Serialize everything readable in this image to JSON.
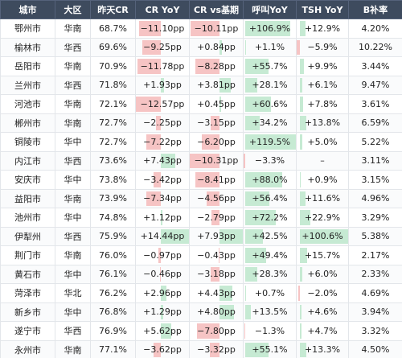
{
  "table": {
    "header": [
      "城市",
      "大区",
      "昨天CR",
      "CR YoY",
      "CR vs基期",
      "呼叫YoY",
      "TSH YoY",
      "B补率"
    ],
    "rows": [
      [
        "鄂州市",
        "华南",
        "68.7%",
        "−11.10pp",
        "−10.11pp",
        "+106.9%",
        "+12.9%",
        "4.20%"
      ],
      [
        "榆林市",
        "华西",
        "69.6%",
        "−9.25pp",
        "+0.84pp",
        "+1.1%",
        "−5.9%",
        "10.22%"
      ],
      [
        "岳阳市",
        "华南",
        "70.9%",
        "−11.78pp",
        "−8.28pp",
        "+55.7%",
        "+9.9%",
        "3.44%"
      ],
      [
        "兰州市",
        "华西",
        "71.8%",
        "+1.93pp",
        "+3.81pp",
        "+28.1%",
        "+6.1%",
        "9.47%"
      ],
      [
        "河池市",
        "华南",
        "72.1%",
        "−12.57pp",
        "+0.45pp",
        "+60.6%",
        "+7.8%",
        "3.61%"
      ],
      [
        "郴州市",
        "华南",
        "72.7%",
        "−2.25pp",
        "−3.15pp",
        "+34.2%",
        "+13.8%",
        "6.59%"
      ],
      [
        "铜陵市",
        "华中",
        "72.7%",
        "−7.22pp",
        "−6.20pp",
        "+119.5%",
        "+5.0%",
        "5.22%"
      ],
      [
        "内江市",
        "华西",
        "73.6%",
        "+7.43pp",
        "−10.31pp",
        "−3.3%",
        "–",
        "3.11%"
      ],
      [
        "安庆市",
        "华中",
        "73.8%",
        "−3.42pp",
        "−8.41pp",
        "+88.0%",
        "+0.9%",
        "3.15%"
      ],
      [
        "益阳市",
        "华南",
        "73.9%",
        "−7.34pp",
        "−4.56pp",
        "+56.4%",
        "+11.6%",
        "4.96%"
      ],
      [
        "池州市",
        "华中",
        "74.8%",
        "+1.12pp",
        "−2.79pp",
        "+72.2%",
        "+22.9%",
        "3.29%"
      ],
      [
        "伊犁州",
        "华西",
        "75.9%",
        "+14.44pp",
        "+7.93pp",
        "+42.5%",
        "+100.6%",
        "5.38%"
      ],
      [
        "荆门市",
        "华南",
        "76.0%",
        "−0.97pp",
        "−0.43pp",
        "+49.4%",
        "+15.7%",
        "2.17%"
      ],
      [
        "黄石市",
        "华中",
        "76.1%",
        "−0.46pp",
        "−3.18pp",
        "+28.3%",
        "+6.0%",
        "2.33%"
      ],
      [
        "菏泽市",
        "华北",
        "76.2%",
        "+2.96pp",
        "+4.43pp",
        "+0.7%",
        "−2.0%",
        "4.69%"
      ],
      [
        "新乡市",
        "华中",
        "76.8%",
        "+1.29pp",
        "+4.80pp",
        "+13.5%",
        "+4.6%",
        "3.94%"
      ],
      [
        "遂宁市",
        "华西",
        "76.9%",
        "+5.62pp",
        "−7.80pp",
        "−1.3%",
        "+4.7%",
        "3.32%"
      ],
      [
        "永州市",
        "华南",
        "77.1%",
        "−3.62pp",
        "−3.32pp",
        "+55.1%",
        "+13.3%",
        "4.50%"
      ]
    ]
  }
}
